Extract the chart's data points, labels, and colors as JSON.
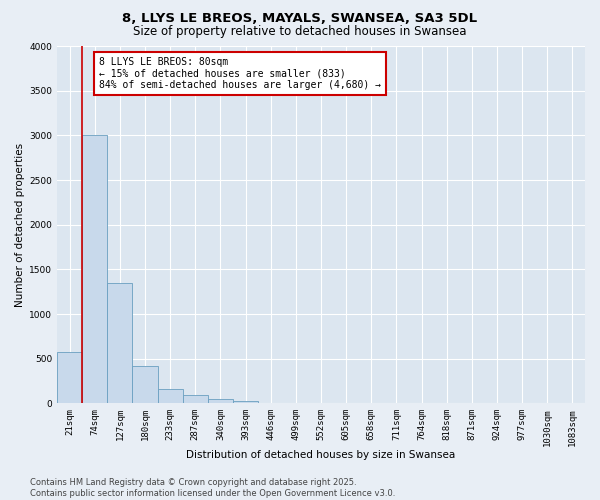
{
  "title": "8, LLYS LE BREOS, MAYALS, SWANSEA, SA3 5DL",
  "subtitle": "Size of property relative to detached houses in Swansea",
  "xlabel": "Distribution of detached houses by size in Swansea",
  "ylabel": "Number of detached properties",
  "bar_labels": [
    "21sqm",
    "74sqm",
    "127sqm",
    "180sqm",
    "233sqm",
    "287sqm",
    "340sqm",
    "393sqm",
    "446sqm",
    "499sqm",
    "552sqm",
    "605sqm",
    "658sqm",
    "711sqm",
    "764sqm",
    "818sqm",
    "871sqm",
    "924sqm",
    "977sqm",
    "1030sqm",
    "1083sqm"
  ],
  "bar_values": [
    580,
    3000,
    1350,
    420,
    160,
    95,
    50,
    30,
    0,
    0,
    0,
    0,
    0,
    0,
    0,
    0,
    0,
    0,
    0,
    0,
    0
  ],
  "bar_color": "#c8d9eb",
  "bar_edge_color": "#6a9fc0",
  "vline_x": 1,
  "vline_color": "#cc0000",
  "annotation_text": "8 LLYS LE BREOS: 80sqm\n← 15% of detached houses are smaller (833)\n84% of semi-detached houses are larger (4,680) →",
  "annotation_box_color": "#ffffff",
  "annotation_box_edge_color": "#cc0000",
  "ylim": [
    0,
    4000
  ],
  "yticks": [
    0,
    500,
    1000,
    1500,
    2000,
    2500,
    3000,
    3500,
    4000
  ],
  "footer_text": "Contains HM Land Registry data © Crown copyright and database right 2025.\nContains public sector information licensed under the Open Government Licence v3.0.",
  "bg_color": "#e8eef5",
  "plot_bg_color": "#dce6f0",
  "grid_color": "#ffffff",
  "title_fontsize": 9.5,
  "subtitle_fontsize": 8.5,
  "axis_label_fontsize": 7.5,
  "tick_fontsize": 6.5,
  "annotation_fontsize": 7,
  "footer_fontsize": 6
}
